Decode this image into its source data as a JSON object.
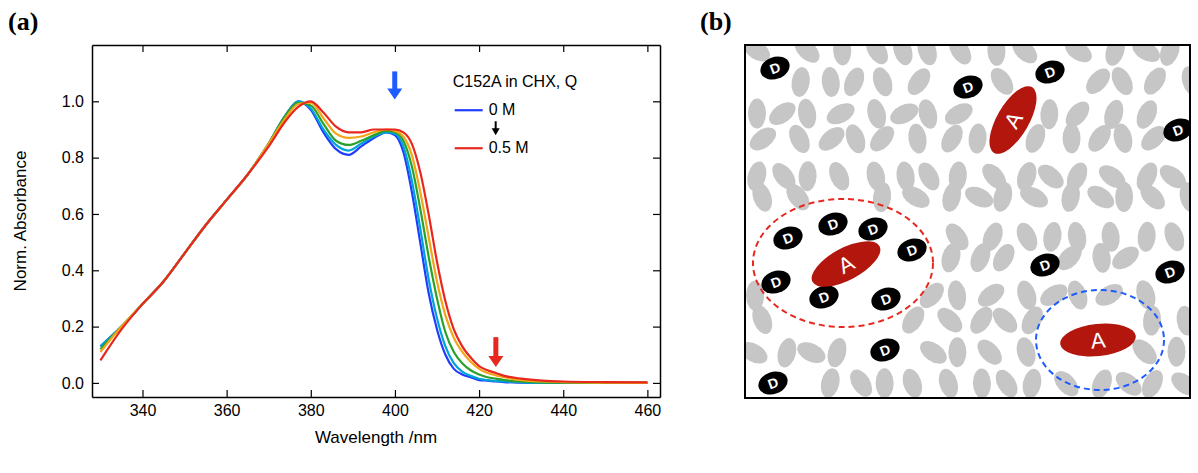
{
  "chart_data": {
    "type": "line",
    "title": "(a)",
    "x_label": "Wavelength /nm",
    "y_label": "Norm. Absorbance",
    "legend_title": "C152A in CHX, Q",
    "legend": "top right",
    "x": [
      330,
      335,
      340,
      345,
      350,
      355,
      360,
      365,
      370,
      374,
      377,
      380,
      383,
      386,
      389,
      392,
      395,
      398,
      400,
      402,
      404,
      406,
      408,
      410,
      412,
      414,
      416,
      418,
      420,
      422,
      424,
      426,
      430,
      435,
      440,
      450,
      460
    ],
    "series": [
      {
        "name": "0 M",
        "color": "#1f3dff",
        "values": [
          0.13,
          0.2,
          0.28,
          0.36,
          0.46,
          0.56,
          0.65,
          0.74,
          0.85,
          0.95,
          1.0,
          0.97,
          0.89,
          0.83,
          0.81,
          0.84,
          0.87,
          0.89,
          0.88,
          0.82,
          0.68,
          0.5,
          0.32,
          0.19,
          0.1,
          0.05,
          0.03,
          0.02,
          0.01,
          0.008,
          0.005,
          0.003,
          0.001,
          0,
          0,
          0,
          0
        ]
      },
      {
        "color": "#00a3d6",
        "values": [
          0.13,
          0.2,
          0.28,
          0.36,
          0.46,
          0.56,
          0.65,
          0.74,
          0.85,
          0.95,
          1.0,
          0.975,
          0.9,
          0.845,
          0.825,
          0.85,
          0.875,
          0.89,
          0.885,
          0.84,
          0.72,
          0.55,
          0.37,
          0.23,
          0.13,
          0.07,
          0.04,
          0.025,
          0.015,
          0.01,
          0.007,
          0.005,
          0.002,
          0,
          0,
          0,
          0
        ]
      },
      {
        "color": "#2ca02c",
        "values": [
          0.12,
          0.2,
          0.28,
          0.36,
          0.46,
          0.56,
          0.65,
          0.74,
          0.85,
          0.95,
          0.995,
          0.985,
          0.92,
          0.86,
          0.845,
          0.86,
          0.88,
          0.895,
          0.89,
          0.86,
          0.77,
          0.62,
          0.45,
          0.3,
          0.18,
          0.11,
          0.07,
          0.045,
          0.03,
          0.02,
          0.015,
          0.01,
          0.005,
          0.002,
          0.001,
          0,
          0
        ]
      },
      {
        "color": "#f2a516",
        "values": [
          0.11,
          0.2,
          0.28,
          0.36,
          0.46,
          0.56,
          0.65,
          0.74,
          0.85,
          0.94,
          0.99,
          0.995,
          0.94,
          0.885,
          0.87,
          0.875,
          0.89,
          0.9,
          0.895,
          0.875,
          0.81,
          0.68,
          0.52,
          0.36,
          0.24,
          0.16,
          0.11,
          0.075,
          0.05,
          0.035,
          0.027,
          0.02,
          0.01,
          0.005,
          0.003,
          0.001,
          0
        ]
      },
      {
        "name": "0.5 M",
        "color": "#e8281e",
        "values": [
          0.08,
          0.19,
          0.28,
          0.36,
          0.46,
          0.56,
          0.65,
          0.74,
          0.84,
          0.93,
          0.98,
          1.0,
          0.96,
          0.91,
          0.89,
          0.89,
          0.9,
          0.9,
          0.9,
          0.89,
          0.85,
          0.75,
          0.6,
          0.43,
          0.29,
          0.19,
          0.13,
          0.09,
          0.06,
          0.045,
          0.035,
          0.025,
          0.015,
          0.008,
          0.005,
          0.003,
          0.002
        ]
      }
    ],
    "xlim": [
      328,
      463
    ],
    "xticks": [
      340,
      360,
      380,
      400,
      420,
      440,
      460
    ],
    "ylim": [
      -0.05,
      1.2
    ],
    "yticks": [
      {
        "value": 0,
        "label": "0.0"
      },
      0.2,
      0.4,
      0.6,
      0.8,
      {
        "value": 1,
        "label": "1.0"
      }
    ]
  },
  "diagram": {
    "label": "(b)",
    "donors": [
      "D",
      "D",
      "D",
      "D",
      "D",
      "D",
      "D",
      "D",
      "D",
      "D",
      "D",
      "D",
      "D",
      "D",
      "D"
    ],
    "acceptors": [
      "A",
      "A",
      "A"
    ]
  }
}
